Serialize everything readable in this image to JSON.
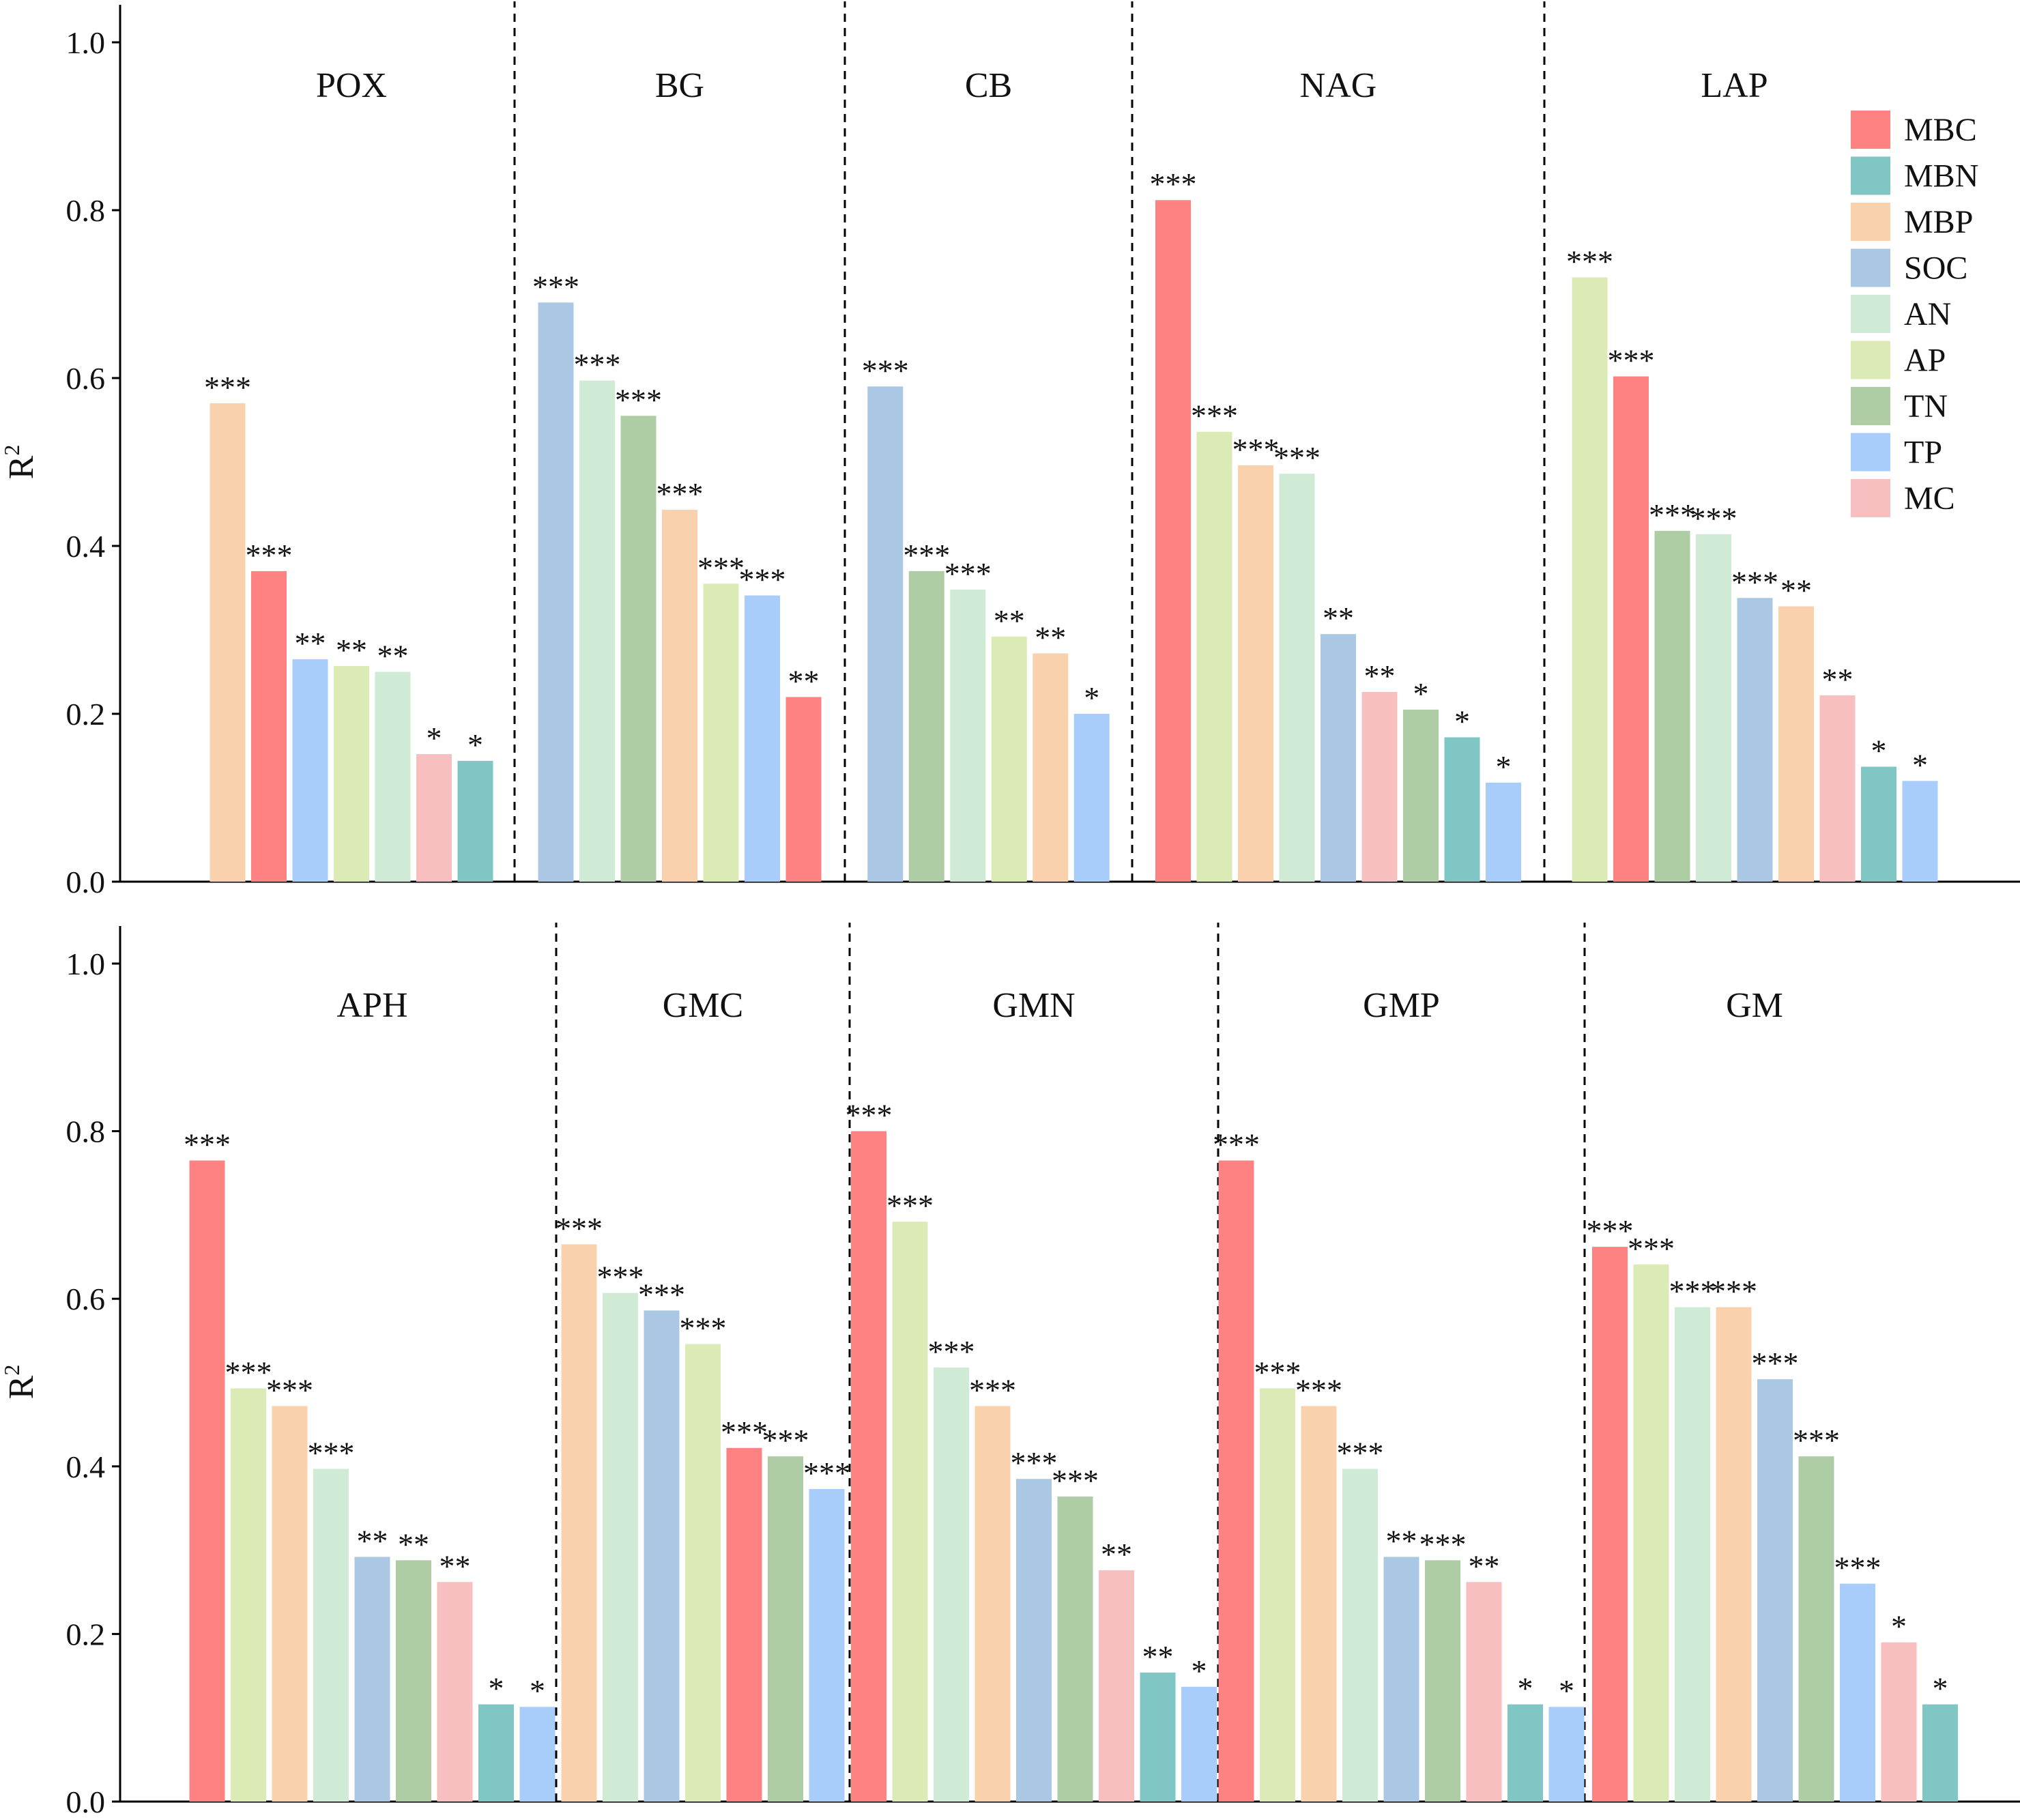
{
  "colors": {
    "MBC": "#fe8282",
    "MBN": "#7fc6c5",
    "MBP": "#f9d1ad",
    "SOC": "#aac8e4",
    "AN": "#cfebd5",
    "AP": "#dcebb6",
    "TN": "#aecda5",
    "TP": "#a9cdfa",
    "MC": "#f7bfbf"
  },
  "legend": {
    "position": "top-right",
    "entries": [
      "MBC",
      "MBN",
      "MBP",
      "SOC",
      "AN",
      "AP",
      "TN",
      "TP",
      "MC"
    ]
  },
  "chart_data": [
    {
      "type": "bar",
      "panel": "top",
      "ylabel": "R",
      "ylabel_superscript": "2",
      "ylim": [
        0,
        1.0
      ],
      "yticks": [
        "0.0",
        "0.2",
        "0.4",
        "0.6",
        "0.8",
        "1.0"
      ],
      "groups": [
        {
          "title": "POX",
          "bars": [
            {
              "var": "MBP",
              "value": 0.57,
              "sig": "***"
            },
            {
              "var": "MBC",
              "value": 0.37,
              "sig": "***"
            },
            {
              "var": "TP",
              "value": 0.265,
              "sig": "**"
            },
            {
              "var": "AP",
              "value": 0.257,
              "sig": "**"
            },
            {
              "var": "AN",
              "value": 0.25,
              "sig": "**"
            },
            {
              "var": "MC",
              "value": 0.152,
              "sig": "*"
            },
            {
              "var": "MBN",
              "value": 0.144,
              "sig": "*"
            }
          ]
        },
        {
          "title": "BG",
          "bars": [
            {
              "var": "SOC",
              "value": 0.69,
              "sig": "***"
            },
            {
              "var": "AN",
              "value": 0.597,
              "sig": "***"
            },
            {
              "var": "TN",
              "value": 0.555,
              "sig": "***"
            },
            {
              "var": "MBP",
              "value": 0.443,
              "sig": "***"
            },
            {
              "var": "AP",
              "value": 0.355,
              "sig": "***"
            },
            {
              "var": "TP",
              "value": 0.341,
              "sig": "***"
            },
            {
              "var": "MBC",
              "value": 0.22,
              "sig": "**"
            }
          ]
        },
        {
          "title": "CB",
          "bars": [
            {
              "var": "SOC",
              "value": 0.59,
              "sig": "***"
            },
            {
              "var": "TN",
              "value": 0.37,
              "sig": "***"
            },
            {
              "var": "AN",
              "value": 0.348,
              "sig": "***"
            },
            {
              "var": "AP",
              "value": 0.292,
              "sig": "**"
            },
            {
              "var": "MBP",
              "value": 0.272,
              "sig": "**"
            },
            {
              "var": "TP",
              "value": 0.2,
              "sig": "*"
            }
          ]
        },
        {
          "title": "NAG",
          "bars": [
            {
              "var": "MBC",
              "value": 0.812,
              "sig": "***"
            },
            {
              "var": "AP",
              "value": 0.536,
              "sig": "***"
            },
            {
              "var": "MBP",
              "value": 0.496,
              "sig": "***"
            },
            {
              "var": "AN",
              "value": 0.486,
              "sig": "***"
            },
            {
              "var": "SOC",
              "value": 0.295,
              "sig": "**"
            },
            {
              "var": "MC",
              "value": 0.226,
              "sig": "**"
            },
            {
              "var": "TN",
              "value": 0.205,
              "sig": "*"
            },
            {
              "var": "MBN",
              "value": 0.172,
              "sig": "*"
            },
            {
              "var": "TP",
              "value": 0.118,
              "sig": "*"
            }
          ]
        },
        {
          "title": "LAP",
          "bars": [
            {
              "var": "AP",
              "value": 0.72,
              "sig": "***"
            },
            {
              "var": "MBC",
              "value": 0.602,
              "sig": "***"
            },
            {
              "var": "TN",
              "value": 0.418,
              "sig": "***"
            },
            {
              "var": "AN",
              "value": 0.414,
              "sig": "***"
            },
            {
              "var": "SOC",
              "value": 0.338,
              "sig": "***"
            },
            {
              "var": "MBP",
              "value": 0.328,
              "sig": "**"
            },
            {
              "var": "MC",
              "value": 0.222,
              "sig": "**"
            },
            {
              "var": "MBN",
              "value": 0.137,
              "sig": "*"
            },
            {
              "var": "TP",
              "value": 0.12,
              "sig": "*"
            }
          ]
        }
      ]
    },
    {
      "type": "bar",
      "panel": "bottom",
      "ylabel": "R",
      "ylabel_superscript": "2",
      "ylim": [
        0,
        1.0
      ],
      "yticks": [
        "0.0",
        "0.2",
        "0.4",
        "0.6",
        "0.8",
        "1.0"
      ],
      "groups": [
        {
          "title": "APH",
          "bars": [
            {
              "var": "MBC",
              "value": 0.765,
              "sig": "***"
            },
            {
              "var": "AP",
              "value": 0.493,
              "sig": "***"
            },
            {
              "var": "MBP",
              "value": 0.472,
              "sig": "***"
            },
            {
              "var": "AN",
              "value": 0.397,
              "sig": "***"
            },
            {
              "var": "SOC",
              "value": 0.292,
              "sig": "**"
            },
            {
              "var": "TN",
              "value": 0.288,
              "sig": "**"
            },
            {
              "var": "MC",
              "value": 0.262,
              "sig": "**"
            },
            {
              "var": "MBN",
              "value": 0.116,
              "sig": "*"
            },
            {
              "var": "TP",
              "value": 0.113,
              "sig": "*"
            }
          ]
        },
        {
          "title": "GMC",
          "bars": [
            {
              "var": "MBP",
              "value": 0.665,
              "sig": "***"
            },
            {
              "var": "AN",
              "value": 0.607,
              "sig": "***"
            },
            {
              "var": "SOC",
              "value": 0.586,
              "sig": "***"
            },
            {
              "var": "AP",
              "value": 0.546,
              "sig": "***"
            },
            {
              "var": "MBC",
              "value": 0.422,
              "sig": "***"
            },
            {
              "var": "TN",
              "value": 0.412,
              "sig": "***"
            },
            {
              "var": "TP",
              "value": 0.373,
              "sig": "***"
            }
          ]
        },
        {
          "title": "GMN",
          "bars": [
            {
              "var": "MBC",
              "value": 0.8,
              "sig": "***"
            },
            {
              "var": "AP",
              "value": 0.692,
              "sig": "***"
            },
            {
              "var": "AN",
              "value": 0.518,
              "sig": "***"
            },
            {
              "var": "MBP",
              "value": 0.472,
              "sig": "***"
            },
            {
              "var": "SOC",
              "value": 0.385,
              "sig": "***"
            },
            {
              "var": "TN",
              "value": 0.364,
              "sig": "***"
            },
            {
              "var": "MC",
              "value": 0.276,
              "sig": "**"
            },
            {
              "var": "MBN",
              "value": 0.154,
              "sig": "**"
            },
            {
              "var": "TP",
              "value": 0.137,
              "sig": "*"
            }
          ]
        },
        {
          "title": "GMP",
          "bars": [
            {
              "var": "MBC",
              "value": 0.765,
              "sig": "***"
            },
            {
              "var": "AP",
              "value": 0.493,
              "sig": "***"
            },
            {
              "var": "MBP",
              "value": 0.472,
              "sig": "***"
            },
            {
              "var": "AN",
              "value": 0.397,
              "sig": "***"
            },
            {
              "var": "SOC",
              "value": 0.292,
              "sig": "**"
            },
            {
              "var": "TN",
              "value": 0.288,
              "sig": "***"
            },
            {
              "var": "MC",
              "value": 0.262,
              "sig": "**"
            },
            {
              "var": "MBN",
              "value": 0.116,
              "sig": "*"
            },
            {
              "var": "TP",
              "value": 0.113,
              "sig": "*"
            }
          ]
        },
        {
          "title": "GM",
          "bars": [
            {
              "var": "MBC",
              "value": 0.662,
              "sig": "***"
            },
            {
              "var": "AP",
              "value": 0.641,
              "sig": "***"
            },
            {
              "var": "AN",
              "value": 0.59,
              "sig": "***"
            },
            {
              "var": "MBP",
              "value": 0.59,
              "sig": "***"
            },
            {
              "var": "SOC",
              "value": 0.504,
              "sig": "***"
            },
            {
              "var": "TN",
              "value": 0.412,
              "sig": "***"
            },
            {
              "var": "TP",
              "value": 0.26,
              "sig": "***"
            },
            {
              "var": "MC",
              "value": 0.19,
              "sig": "*"
            },
            {
              "var": "MBN",
              "value": 0.116,
              "sig": "*"
            }
          ]
        }
      ]
    }
  ]
}
